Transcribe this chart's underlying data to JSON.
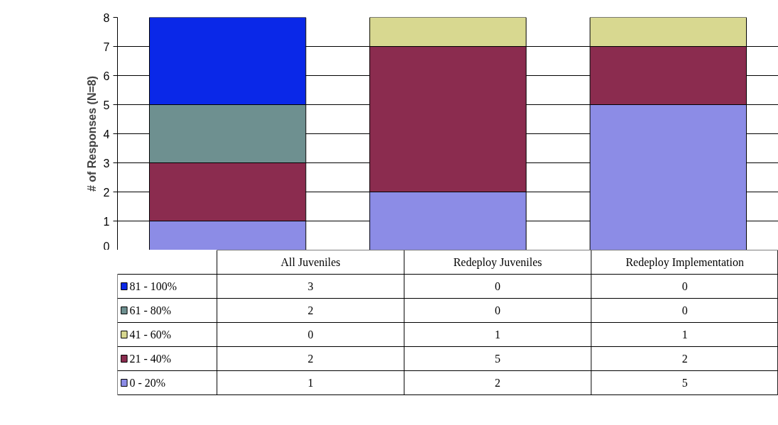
{
  "chart_data": {
    "type": "bar",
    "stacked": true,
    "ylabel": "# of Responses (N=8)",
    "categories": [
      "All Juveniles",
      "Redeploy Juveniles",
      "Redeploy Implementation"
    ],
    "series": [
      {
        "name": "0 - 20%",
        "color": "#8c8ce6",
        "values": [
          1,
          2,
          5
        ]
      },
      {
        "name": "21 - 40%",
        "color": "#8b2c4f",
        "values": [
          2,
          5,
          2
        ]
      },
      {
        "name": "41 - 60%",
        "color": "#d8d890",
        "values": [
          0,
          1,
          1
        ]
      },
      {
        "name": "61 - 80%",
        "color": "#6e9090",
        "values": [
          2,
          0,
          0
        ]
      },
      {
        "name": "81 - 100%",
        "color": "#0a28e8",
        "values": [
          3,
          0,
          0
        ]
      }
    ],
    "ylim": [
      0,
      8
    ],
    "yticks": [
      0,
      1,
      2,
      3,
      4,
      5,
      6,
      7,
      8
    ],
    "grid": "y",
    "legend": "bottom",
    "data_labels": true
  }
}
